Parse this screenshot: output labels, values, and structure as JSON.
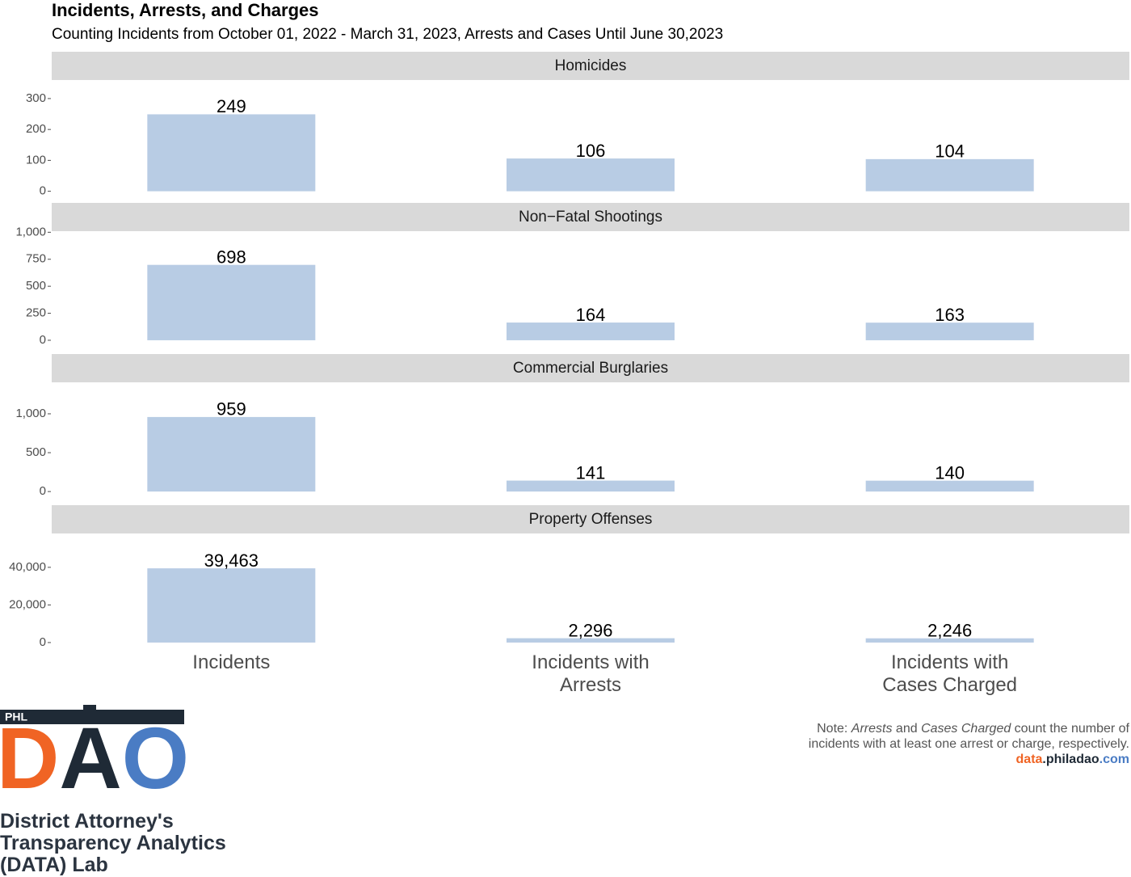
{
  "title": "Incidents, Arrests, and Charges",
  "subtitle": "Counting Incidents from October 01, 2022 - March 31, 2023, Arrests and Cases Until June 30,2023",
  "chart_data": {
    "type": "bar",
    "color": "#b8cce4",
    "categories": [
      "Incidents",
      "Incidents with Arrests",
      "Incidents with Cases Charged"
    ],
    "panels": [
      {
        "title": "Homicides",
        "values": [
          249,
          106,
          104
        ],
        "ylim": [
          -35,
          360
        ],
        "yticks": [
          0,
          100,
          200,
          300
        ]
      },
      {
        "title": "Non−Fatal Shootings",
        "values": [
          698,
          164,
          163
        ],
        "ylim": [
          -120,
          1010
        ],
        "yticks": [
          0,
          250,
          500,
          750,
          {
            "value": 1000,
            "label": "1,000"
          }
        ]
      },
      {
        "title": "Commercial Burglaries",
        "values": [
          959,
          141,
          140
        ],
        "ylim": [
          -165,
          1405
        ],
        "yticks": [
          0,
          500,
          {
            "value": 1000,
            "label": "1,000"
          }
        ]
      },
      {
        "title": "Property Offenses",
        "values": [
          39463,
          2296,
          2246
        ],
        "value_labels": [
          "39,463",
          "2,296",
          "2,246"
        ],
        "ylim": [
          -6900,
          58000
        ],
        "yticks": [
          0,
          {
            "value": 20000,
            "label": "20,000"
          },
          {
            "value": 40000,
            "label": "40,000"
          }
        ]
      }
    ]
  },
  "note": [
    "Note: ",
    "Arrests",
    " and ",
    "Cases Charged",
    " count the number of incidents with at least one arrest or charge, respectively."
  ],
  "source": [
    "data",
    ".philadao",
    ".com"
  ],
  "logo": {
    "badge": "PHL",
    "mark": [
      "D",
      "A",
      "O"
    ],
    "caption": [
      "District Attorney's",
      "Transparency Analytics",
      "(DATA) Lab"
    ]
  }
}
